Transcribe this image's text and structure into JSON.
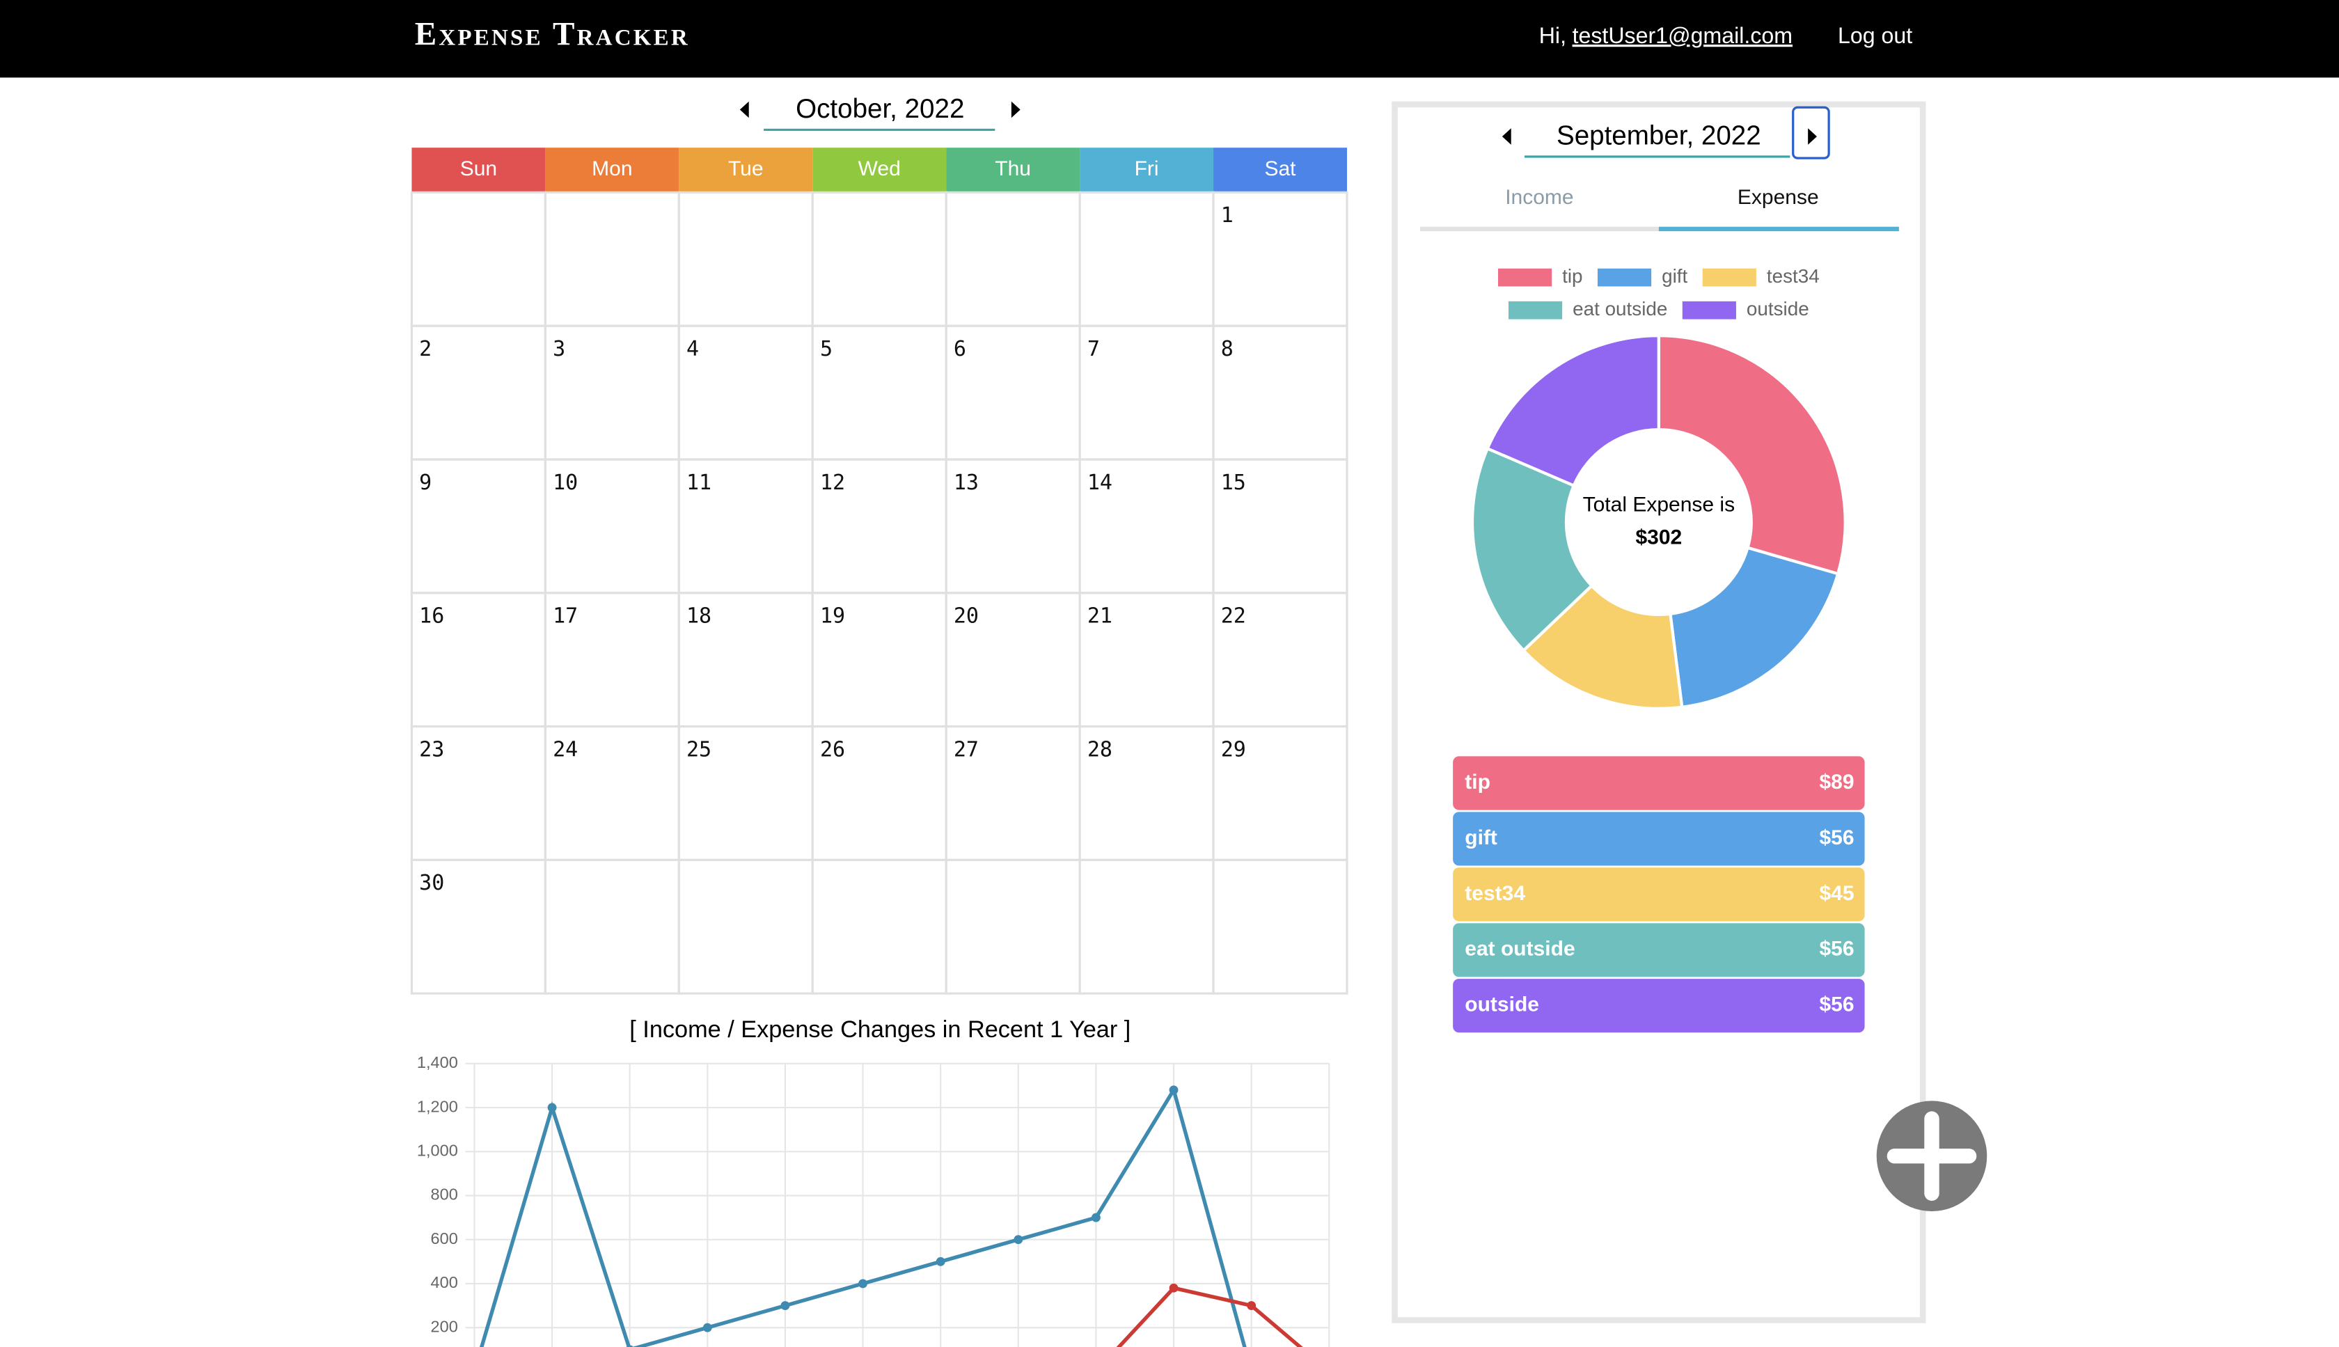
{
  "header": {
    "title": "Expense Tracker",
    "greeting": "Hi,",
    "email": "testUser1@gmail.com",
    "logout": "Log out"
  },
  "calendar": {
    "month": "October, 2022",
    "weekdays": [
      "Sun",
      "Mon",
      "Tue",
      "Wed",
      "Thu",
      "Fri",
      "Sat"
    ],
    "weeks": [
      [
        null,
        null,
        null,
        null,
        null,
        null,
        1
      ],
      [
        2,
        3,
        4,
        5,
        6,
        7,
        8
      ],
      [
        9,
        10,
        11,
        12,
        13,
        14,
        15
      ],
      [
        16,
        17,
        18,
        19,
        20,
        21,
        22
      ],
      [
        23,
        24,
        25,
        26,
        27,
        28,
        29
      ],
      [
        30,
        null,
        null,
        null,
        null,
        null,
        null
      ]
    ]
  },
  "line_chart": {
    "type": "line",
    "title": "[ Income / Expense Changes in Recent 1 Year ]",
    "ylim": [
      0,
      1400
    ],
    "yticks": [
      200,
      400,
      600,
      800,
      {
        "value": 1000,
        "label": "1,000"
      },
      {
        "value": 1200,
        "label": "1,200"
      },
      {
        "value": 1400,
        "label": "1,400"
      }
    ],
    "grid": true,
    "series": [
      {
        "color": "#3f8ab0",
        "values": [
          0,
          1200,
          100,
          200,
          300,
          400,
          500,
          600,
          700,
          1280,
          0,
          0
        ]
      },
      {
        "color": "#cc3b33",
        "values": [
          0,
          0,
          0,
          0,
          0,
          0,
          0,
          0,
          0,
          380,
          300,
          0
        ]
      }
    ]
  },
  "summary": {
    "month": "September, 2022",
    "tabs": [
      "Income",
      "Expense"
    ],
    "chart": {
      "type": "pie",
      "categories": [
        "tip",
        "gift",
        "test34",
        "eat outside",
        "outside"
      ],
      "values": [
        89,
        56,
        45,
        56,
        56
      ],
      "value_labels": [
        "$89",
        "$56",
        "$45",
        "$56",
        "$56"
      ],
      "colors": [
        "#ef6e85",
        "#58a2e5",
        "#f7cf6b",
        "#6fbfbf",
        "#9166f0"
      ]
    },
    "center_label": "Total Expense is",
    "center_value": "$302"
  }
}
